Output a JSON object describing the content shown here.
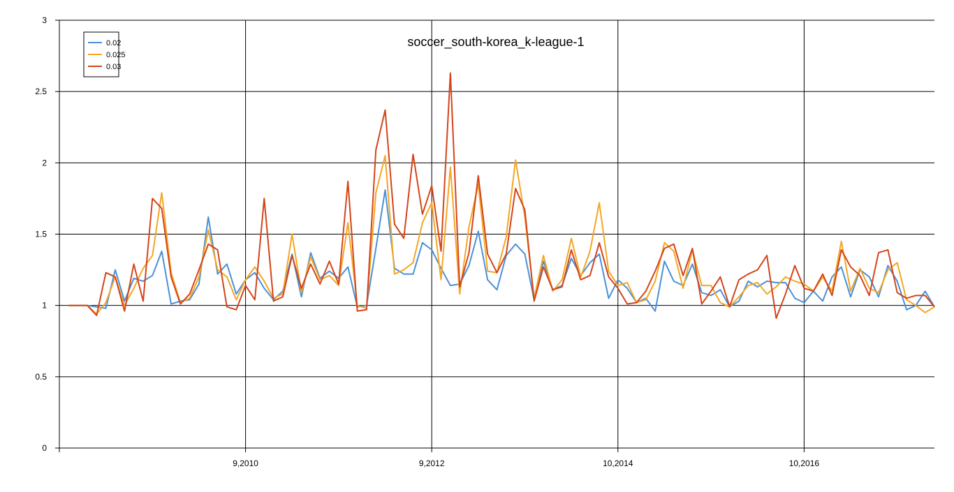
{
  "chart_data": {
    "type": "line",
    "title": "soccer_south-korea_k-league-1",
    "ylim": [
      0,
      3
    ],
    "y_ticks": [
      "0",
      "0.5",
      "1",
      "1.5",
      "2",
      "2.5",
      "3"
    ],
    "x_ticks": [
      "9,2010",
      "9,2012",
      "10,2014",
      "10,2016"
    ],
    "x_tick_positions": [
      20,
      40,
      60,
      80
    ],
    "xlim": [
      0,
      94
    ],
    "grid": true,
    "legend": "top-left",
    "series": [
      {
        "name": "0.02",
        "color": "#4a90d9",
        "values": [
          1.0,
          1.0,
          1.0,
          0.99,
          0.98,
          1.25,
          1.03,
          1.19,
          1.17,
          1.21,
          1.38,
          1.01,
          1.03,
          1.04,
          1.15,
          1.62,
          1.22,
          1.29,
          1.08,
          1.18,
          1.23,
          1.12,
          1.04,
          1.1,
          1.36,
          1.06,
          1.37,
          1.19,
          1.24,
          1.19,
          1.27,
          0.99,
          1.0,
          1.4,
          1.81,
          1.26,
          1.22,
          1.22,
          1.44,
          1.39,
          1.26,
          1.14,
          1.15,
          1.28,
          1.52,
          1.18,
          1.11,
          1.35,
          1.43,
          1.36,
          1.04,
          1.31,
          1.11,
          1.14,
          1.33,
          1.21,
          1.3,
          1.36,
          1.05,
          1.18,
          1.12,
          1.02,
          1.05,
          0.96,
          1.31,
          1.17,
          1.14,
          1.29,
          1.09,
          1.07,
          1.11,
          0.99,
          1.03,
          1.17,
          1.13,
          1.17,
          1.16,
          1.16,
          1.05,
          1.02,
          1.1,
          1.03,
          1.2,
          1.27,
          1.06,
          1.25,
          1.2,
          1.06,
          1.28,
          1.17,
          0.97,
          1.0,
          1.1,
          0.99
        ]
      },
      {
        "name": "0.025",
        "color": "#f5a623",
        "values": [
          1.0,
          1.0,
          1.0,
          0.94,
          1.02,
          1.2,
          1.0,
          1.12,
          1.26,
          1.35,
          1.79,
          1.23,
          1.02,
          1.05,
          1.2,
          1.53,
          1.25,
          1.2,
          1.04,
          1.18,
          1.27,
          1.17,
          1.05,
          1.08,
          1.5,
          1.09,
          1.34,
          1.18,
          1.21,
          1.14,
          1.58,
          1.0,
          0.98,
          1.79,
          2.05,
          1.22,
          1.25,
          1.3,
          1.58,
          1.72,
          1.18,
          1.97,
          1.08,
          1.55,
          1.85,
          1.24,
          1.23,
          1.48,
          2.02,
          1.62,
          1.05,
          1.35,
          1.1,
          1.18,
          1.47,
          1.2,
          1.38,
          1.72,
          1.24,
          1.14,
          1.16,
          1.02,
          1.04,
          1.17,
          1.44,
          1.38,
          1.12,
          1.39,
          1.14,
          1.14,
          1.02,
          0.99,
          1.06,
          1.14,
          1.16,
          1.08,
          1.13,
          1.2,
          1.17,
          1.15,
          1.1,
          1.2,
          1.1,
          1.45,
          1.1,
          1.26,
          1.12,
          1.09,
          1.25,
          1.3,
          1.04,
          1.0,
          0.95,
          0.99
        ]
      },
      {
        "name": "0.03",
        "color": "#d4441a",
        "values": [
          1.0,
          1.0,
          1.0,
          0.93,
          1.23,
          1.2,
          0.96,
          1.29,
          1.03,
          1.75,
          1.68,
          1.2,
          1.01,
          1.08,
          1.25,
          1.43,
          1.39,
          0.99,
          0.97,
          1.14,
          1.04,
          1.75,
          1.03,
          1.06,
          1.35,
          1.12,
          1.29,
          1.15,
          1.31,
          1.15,
          1.87,
          0.96,
          0.97,
          2.09,
          2.37,
          1.57,
          1.47,
          2.06,
          1.64,
          1.84,
          1.38,
          2.63,
          1.13,
          1.37,
          1.91,
          1.36,
          1.23,
          1.36,
          1.82,
          1.67,
          1.03,
          1.27,
          1.11,
          1.13,
          1.39,
          1.18,
          1.21,
          1.44,
          1.2,
          1.12,
          1.01,
          1.02,
          1.1,
          1.24,
          1.4,
          1.43,
          1.21,
          1.4,
          1.01,
          1.1,
          1.2,
          0.99,
          1.18,
          1.22,
          1.25,
          1.35,
          0.91,
          1.08,
          1.28,
          1.12,
          1.1,
          1.22,
          1.07,
          1.39,
          1.27,
          1.21,
          1.07,
          1.37,
          1.39,
          1.09,
          1.05,
          1.07,
          1.07,
          0.99
        ]
      }
    ]
  }
}
